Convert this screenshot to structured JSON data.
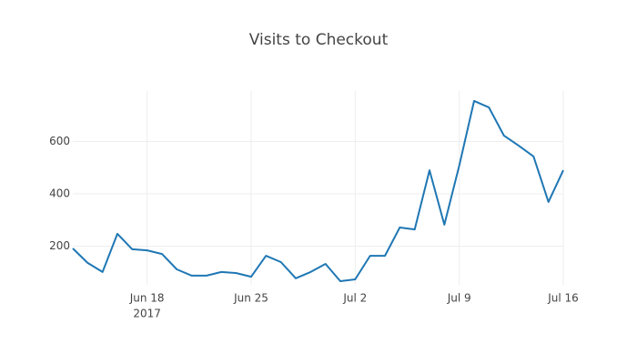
{
  "chart_data": {
    "type": "line",
    "title": "Visits to Checkout",
    "x": [
      "2017-06-13",
      "2017-06-14",
      "2017-06-15",
      "2017-06-16",
      "2017-06-17",
      "2017-06-18",
      "2017-06-19",
      "2017-06-20",
      "2017-06-21",
      "2017-06-22",
      "2017-06-23",
      "2017-06-24",
      "2017-06-25",
      "2017-06-26",
      "2017-06-27",
      "2017-06-28",
      "2017-06-29",
      "2017-06-30",
      "2017-07-01",
      "2017-07-02",
      "2017-07-03",
      "2017-07-04",
      "2017-07-05",
      "2017-07-06",
      "2017-07-07",
      "2017-07-08",
      "2017-07-09",
      "2017-07-10",
      "2017-07-11",
      "2017-07-12",
      "2017-07-13",
      "2017-07-14",
      "2017-07-15",
      "2017-07-16"
    ],
    "values": [
      191,
      136,
      101,
      247,
      188,
      184,
      170,
      111,
      87,
      87,
      101,
      97,
      83,
      163,
      139,
      77,
      101,
      132,
      66,
      73,
      163,
      163,
      271,
      264,
      490,
      282,
      508,
      755,
      730,
      623,
      584,
      543,
      369,
      490
    ],
    "color": "#1f77b4",
    "xlim": [
      "2017-06-13",
      "2017-07-16"
    ],
    "xticks": [
      {
        "value": "2017-06-18",
        "label": "Jun 18"
      },
      {
        "value": "2017-06-25",
        "label": "Jun 25"
      },
      {
        "value": "2017-07-02",
        "label": "Jul 2"
      },
      {
        "value": "2017-07-09",
        "label": "Jul 9"
      },
      {
        "value": "2017-07-16",
        "label": "Jul 16"
      }
    ],
    "x_year_label": "2017",
    "ylim": [
      52,
      793
    ],
    "yticks": [
      200,
      400,
      600
    ],
    "grid": true
  }
}
